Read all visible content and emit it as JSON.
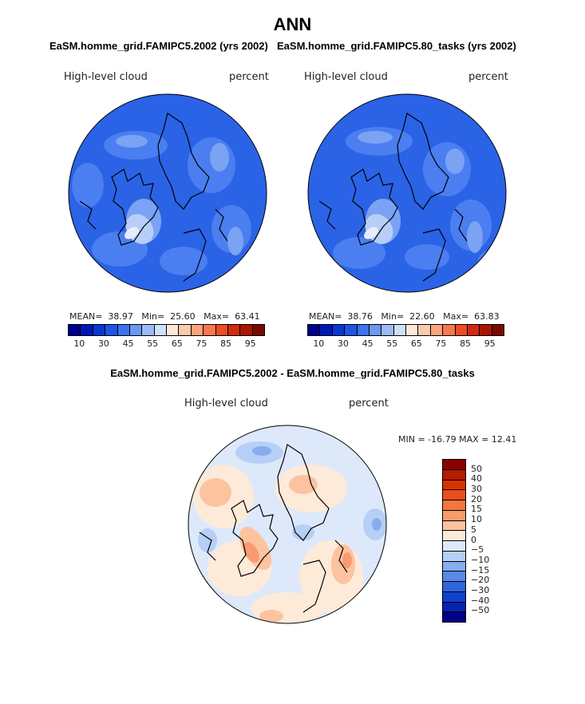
{
  "title": "ANN",
  "panels": [
    {
      "title": "EaSM.homme_grid.FAMIPC5.2002 (yrs 2002)",
      "variable": "High-level cloud",
      "units": "percent",
      "stats": {
        "mean_label": "MEAN=",
        "mean": "38.97",
        "min_label": "Min=",
        "min": "25.60",
        "max_label": "Max=",
        "max": "63.41"
      }
    },
    {
      "title": "EaSM.homme_grid.FAMIPC5.80_tasks (yrs 2002)",
      "variable": "High-level cloud",
      "units": "percent",
      "stats": {
        "mean_label": "MEAN=",
        "mean": "38.76",
        "min_label": "Min=",
        "min": "22.60",
        "max_label": "Max=",
        "max": "63.83"
      }
    }
  ],
  "colorbar": {
    "tick_labels": [
      "10",
      "30",
      "45",
      "55",
      "65",
      "75",
      "85",
      "95"
    ],
    "colors": [
      "#00008c",
      "#0018b4",
      "#0a37d4",
      "#1d55e6",
      "#3a74ef",
      "#6a98f3",
      "#9dbcf6",
      "#cfe0fb",
      "#ffe7d6",
      "#fdc9ac",
      "#fba47c",
      "#f7784f",
      "#ec4d25",
      "#d32a10",
      "#a81604",
      "#7a0a00"
    ]
  },
  "difference": {
    "title": "EaSM.homme_grid.FAMIPC5.2002 - EaSM.homme_grid.FAMIPC5.80_tasks",
    "variable": "High-level cloud",
    "units": "percent",
    "minmax": "MIN = -16.79 MAX =  12.41",
    "colorbar": {
      "labels": [
        "50",
        "40",
        "30",
        "20",
        "15",
        "10",
        "5",
        "0",
        "−5",
        "−10",
        "−15",
        "−20",
        "−30",
        "−40",
        "−50"
      ],
      "colors": [
        "#8b0000",
        "#b51c00",
        "#d83300",
        "#ec4d1a",
        "#f4763e",
        "#f99b6e",
        "#fcc3a0",
        "#feead8",
        "#dde9fb",
        "#b6cff6",
        "#87adf0",
        "#5a89e8",
        "#3164df",
        "#1240cf",
        "#0624ad",
        "#000088"
      ]
    }
  }
}
